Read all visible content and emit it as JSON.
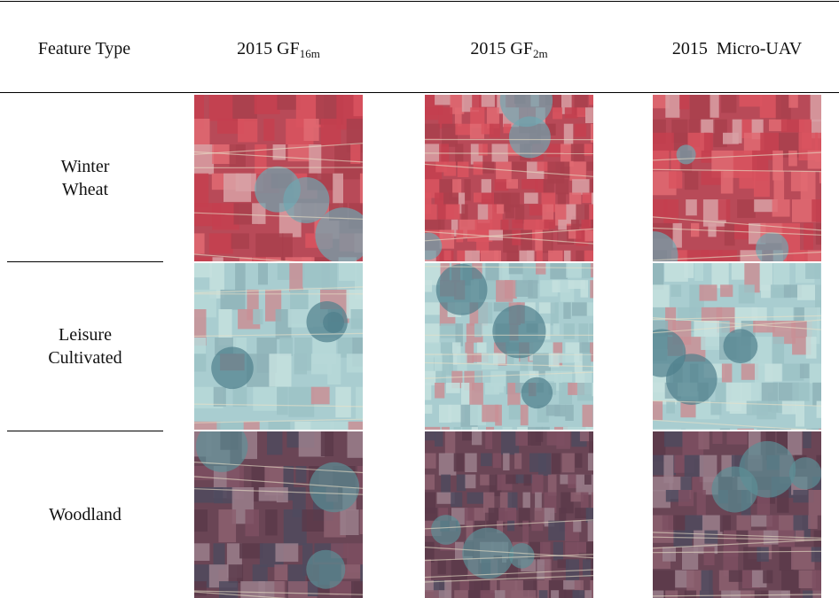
{
  "header": {
    "cells": [
      {
        "text": "Feature Type"
      },
      {
        "text": "2015 GF",
        "sub": "16m"
      },
      {
        "text": "2015 GF",
        "sub": "2m"
      },
      {
        "text": "2015  Micro-UAV"
      }
    ]
  },
  "rows": [
    {
      "label": "Winter Wheat"
    },
    {
      "label": "Leisure Cultivated"
    },
    {
      "label": "Woodland"
    }
  ]
}
